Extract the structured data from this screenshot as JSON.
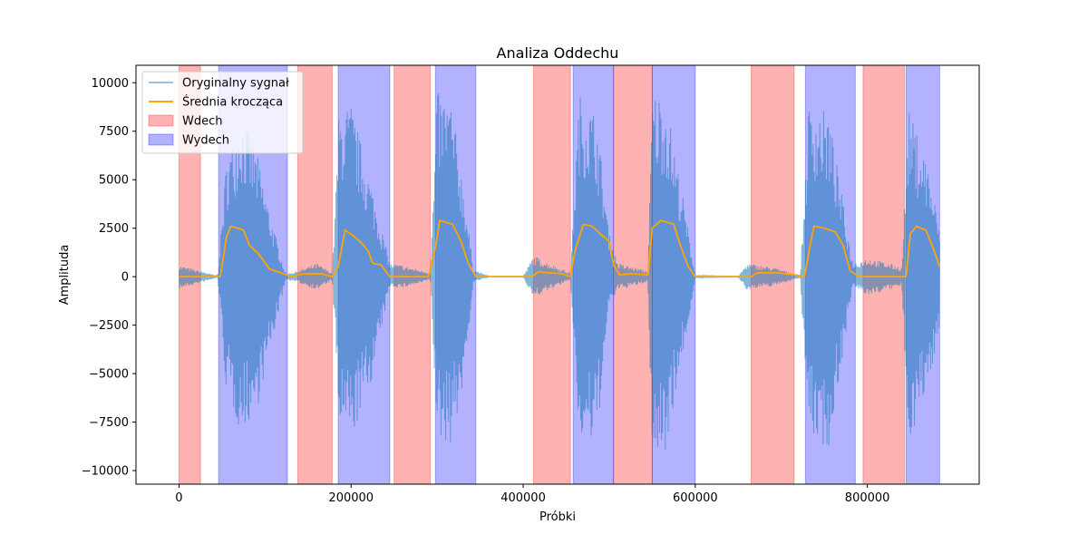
{
  "chart_data": {
    "type": "line",
    "title": "Analiza Oddechu",
    "xlabel": "Próbki",
    "ylabel": "Amplituda",
    "xlim": [
      -50000,
      930000
    ],
    "ylim": [
      -10700,
      10900
    ],
    "xticks": [
      0,
      200000,
      400000,
      600000,
      800000
    ],
    "yticks": [
      -10000,
      -7500,
      -5000,
      -2500,
      0,
      2500,
      5000,
      7500,
      10000
    ],
    "grid": false,
    "legend_position": "top-left",
    "series": [
      {
        "name": "Oryginalny sygnał",
        "color": "#1f77b4",
        "envelope": [
          [
            0,
            600,
            -650
          ],
          [
            25000,
            300,
            -350
          ],
          [
            45000,
            40,
            -40
          ],
          [
            55000,
            6000,
            -6000
          ],
          [
            72000,
            8500,
            -8100
          ],
          [
            90000,
            6500,
            -7000
          ],
          [
            110000,
            2500,
            -3000
          ],
          [
            124000,
            150,
            -150
          ],
          [
            138000,
            300,
            -300
          ],
          [
            160000,
            700,
            -700
          ],
          [
            178000,
            200,
            -200
          ],
          [
            186000,
            8600,
            -7800
          ],
          [
            200000,
            9000,
            -8600
          ],
          [
            225000,
            4500,
            -5200
          ],
          [
            245000,
            700,
            -500
          ],
          [
            258000,
            600,
            -600
          ],
          [
            285000,
            300,
            -300
          ],
          [
            292000,
            200,
            -100
          ],
          [
            300000,
            9500,
            -8500
          ],
          [
            315000,
            9400,
            -8700
          ],
          [
            330000,
            5000,
            -6000
          ],
          [
            342000,
            400,
            -300
          ],
          [
            360000,
            20,
            -20
          ],
          [
            400000,
            20,
            -20
          ],
          [
            412000,
            1100,
            -1100
          ],
          [
            440000,
            500,
            -500
          ],
          [
            455000,
            200,
            -200
          ],
          [
            465000,
            9500,
            -8700
          ],
          [
            485000,
            8500,
            -8800
          ],
          [
            500000,
            2200,
            -1500
          ],
          [
            510000,
            700,
            -700
          ],
          [
            545000,
            300,
            -300
          ],
          [
            550000,
            9600,
            -9700
          ],
          [
            565000,
            9500,
            -9000
          ],
          [
            590000,
            3000,
            -3000
          ],
          [
            600000,
            50,
            -50
          ],
          [
            650000,
            20,
            -20
          ],
          [
            660000,
            700,
            -700
          ],
          [
            690000,
            500,
            -500
          ],
          [
            712000,
            200,
            -200
          ],
          [
            722000,
            60,
            -60
          ],
          [
            732000,
            9000,
            -8200
          ],
          [
            755000,
            8500,
            -9000
          ],
          [
            783000,
            700,
            -500
          ],
          [
            800000,
            1000,
            -1000
          ],
          [
            840000,
            500,
            -500
          ],
          [
            848000,
            8600,
            -8500
          ],
          [
            870000,
            6000,
            -6000
          ],
          [
            884000,
            2500,
            -2500
          ]
        ]
      },
      {
        "name": "Średnia krocząca",
        "color": "#ffa500",
        "points": [
          [
            0,
            0
          ],
          [
            25000,
            0
          ],
          [
            48000,
            0
          ],
          [
            55000,
            2000
          ],
          [
            60000,
            2600
          ],
          [
            68000,
            2500
          ],
          [
            75000,
            2400
          ],
          [
            82000,
            1600
          ],
          [
            92000,
            1200
          ],
          [
            105000,
            400
          ],
          [
            118000,
            200
          ],
          [
            130000,
            0
          ],
          [
            145000,
            150
          ],
          [
            165000,
            150
          ],
          [
            178000,
            0
          ],
          [
            185000,
            500
          ],
          [
            193000,
            2400
          ],
          [
            203000,
            2100
          ],
          [
            213000,
            1700
          ],
          [
            220000,
            1300
          ],
          [
            225000,
            700
          ],
          [
            235000,
            600
          ],
          [
            245000,
            0
          ],
          [
            290000,
            0
          ],
          [
            298000,
            1500
          ],
          [
            303000,
            2900
          ],
          [
            318000,
            2700
          ],
          [
            328000,
            1800
          ],
          [
            336000,
            700
          ],
          [
            345000,
            0
          ],
          [
            410000,
            0
          ],
          [
            418000,
            250
          ],
          [
            430000,
            200
          ],
          [
            445000,
            150
          ],
          [
            455000,
            0
          ],
          [
            460000,
            1300
          ],
          [
            470000,
            2700
          ],
          [
            480000,
            2600
          ],
          [
            490000,
            2200
          ],
          [
            500000,
            1800
          ],
          [
            505000,
            600
          ],
          [
            512000,
            100
          ],
          [
            525000,
            150
          ],
          [
            545000,
            100
          ],
          [
            550000,
            2500
          ],
          [
            560000,
            2900
          ],
          [
            575000,
            2700
          ],
          [
            582000,
            1700
          ],
          [
            592000,
            500
          ],
          [
            600000,
            0
          ],
          [
            665000,
            0
          ],
          [
            672000,
            200
          ],
          [
            695000,
            200
          ],
          [
            715000,
            100
          ],
          [
            727000,
            0
          ],
          [
            733000,
            1500
          ],
          [
            738000,
            2600
          ],
          [
            750000,
            2500
          ],
          [
            763000,
            2300
          ],
          [
            772000,
            1600
          ],
          [
            780000,
            300
          ],
          [
            790000,
            0
          ],
          [
            845000,
            0
          ],
          [
            850000,
            2200
          ],
          [
            857000,
            2600
          ],
          [
            868000,
            2400
          ],
          [
            878000,
            1300
          ],
          [
            884000,
            500
          ]
        ]
      }
    ],
    "shaded_regions": {
      "Wdech": {
        "color": "#ff0000",
        "spans": [
          [
            0,
            25000
          ],
          [
            138000,
            178000
          ],
          [
            250000,
            292000
          ],
          [
            412000,
            455000
          ],
          [
            505000,
            550000
          ],
          [
            665000,
            715000
          ],
          [
            795000,
            843000
          ]
        ]
      },
      "Wydech": {
        "color": "#0000ff",
        "spans": [
          [
            46000,
            126000
          ],
          [
            185000,
            245000
          ],
          [
            298000,
            345000
          ],
          [
            458000,
            505000
          ],
          [
            550000,
            600000
          ],
          [
            728000,
            786000
          ],
          [
            845000,
            884000
          ]
        ]
      }
    },
    "legend": [
      {
        "label": "Oryginalny sygnał",
        "kind": "line",
        "color": "#1f77b4"
      },
      {
        "label": "Średnia krocząca",
        "kind": "line",
        "color": "#ffa500"
      },
      {
        "label": "Wdech",
        "kind": "patch",
        "color": "#ff0000"
      },
      {
        "label": "Wydech",
        "kind": "patch",
        "color": "#0000ff"
      }
    ]
  }
}
